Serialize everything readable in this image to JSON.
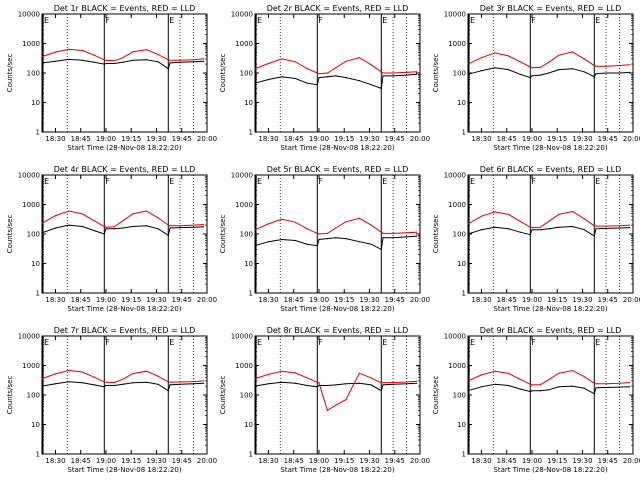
{
  "figure": {
    "background": "#ffffff",
    "colors": {
      "events": "#000000",
      "lld": "#e00000",
      "axes": "#000000"
    }
  },
  "chart_data": [
    {
      "type": "line",
      "title": "Det 1r BLACK = Events, RED = LLD",
      "ylabel": "Counts/sec",
      "xlabel": "Start Time (28-Nov-08 18:22:20)",
      "x_ticks": [
        "18:30",
        "18:45",
        "19:00",
        "19:15",
        "19:30",
        "19:45",
        "20:00"
      ],
      "y_ticks": [
        "1",
        "10",
        "100",
        "1000",
        "10000"
      ],
      "ylim": [
        1,
        10000
      ],
      "log_y": true,
      "markers": [
        {
          "label": "E",
          "x": "18:22"
        },
        {
          "label": "F",
          "x": "18:59"
        },
        {
          "label": "E",
          "x": "19:37"
        }
      ],
      "x": [
        "18:22",
        "18:30",
        "18:38",
        "18:46",
        "18:53",
        "18:59",
        "19:00",
        "19:05",
        "19:10",
        "19:16",
        "19:24",
        "19:31",
        "19:37",
        "19:38",
        "19:44",
        "19:52",
        "19:58"
      ],
      "series": [
        {
          "name": "BLACK = Events",
          "values": [
            220,
            250,
            290,
            270,
            230,
            200,
            210,
            210,
            230,
            270,
            280,
            240,
            140,
            220,
            230,
            240,
            250
          ]
        },
        {
          "name": "RED = LLD",
          "values": [
            360,
            510,
            640,
            580,
            400,
            280,
            270,
            260,
            330,
            520,
            620,
            420,
            280,
            270,
            270,
            280,
            300
          ]
        }
      ]
    },
    {
      "type": "line",
      "title": "Det 2r BLACK = Events, RED = LLD",
      "ylabel": "Counts/sec",
      "xlabel": "Start Time (28-Nov-08 18:22:20)",
      "x_ticks": [
        "18:30",
        "18:45",
        "19:00",
        "19:15",
        "19:30",
        "19:45",
        "20:00"
      ],
      "y_ticks": [
        "1",
        "10",
        "100",
        "1000",
        "10000"
      ],
      "ylim": [
        1,
        10000
      ],
      "log_y": true,
      "markers": [
        {
          "label": "E",
          "x": "18:22"
        },
        {
          "label": "F",
          "x": "18:59"
        },
        {
          "label": "E",
          "x": "19:37"
        }
      ],
      "x": [
        "18:22",
        "18:30",
        "18:38",
        "18:46",
        "18:53",
        "18:59",
        "19:00",
        "19:05",
        "19:10",
        "19:16",
        "19:24",
        "19:31",
        "19:37",
        "19:38",
        "19:44",
        "19:52",
        "19:58"
      ],
      "series": [
        {
          "name": "BLACK = Events",
          "values": [
            45,
            60,
            75,
            65,
            45,
            40,
            70,
            75,
            80,
            70,
            55,
            40,
            30,
            80,
            80,
            85,
            90
          ]
        },
        {
          "name": "RED = LLD",
          "values": [
            140,
            210,
            300,
            240,
            140,
            100,
            95,
            100,
            150,
            250,
            330,
            190,
            110,
            100,
            100,
            105,
            110
          ]
        }
      ]
    },
    {
      "type": "line",
      "title": "Det 3r BLACK = Events, RED = LLD",
      "ylabel": "Counts/sec",
      "xlabel": "Start Time (28-Nov-08 18:22:20)",
      "x_ticks": [
        "18:30",
        "18:45",
        "19:00",
        "19:15",
        "19:30",
        "19:45",
        "20:00"
      ],
      "y_ticks": [
        "1",
        "10",
        "100",
        "1000",
        "10000"
      ],
      "ylim": [
        1,
        10000
      ],
      "log_y": true,
      "markers": [
        {
          "label": "E",
          "x": "18:22"
        },
        {
          "label": "F",
          "x": "18:59"
        },
        {
          "label": "E",
          "x": "19:37"
        }
      ],
      "x": [
        "18:22",
        "18:30",
        "18:38",
        "18:46",
        "18:53",
        "18:59",
        "19:00",
        "19:05",
        "19:10",
        "19:16",
        "19:24",
        "19:31",
        "19:37",
        "19:38",
        "19:44",
        "19:52",
        "19:58"
      ],
      "series": [
        {
          "name": "BLACK = Events",
          "values": [
            90,
            120,
            150,
            130,
            90,
            70,
            80,
            85,
            100,
            130,
            140,
            110,
            75,
            95,
            100,
            100,
            105
          ]
        },
        {
          "name": "RED = LLD",
          "values": [
            200,
            330,
            480,
            380,
            240,
            160,
            150,
            155,
            230,
            400,
            520,
            300,
            180,
            170,
            170,
            180,
            190
          ]
        }
      ]
    },
    {
      "type": "line",
      "title": "Det 4r BLACK = Events, RED = LLD",
      "ylabel": "Counts/sec",
      "xlabel": "Start Time (28-Nov-08 18:22:20)",
      "x_ticks": [
        "18:30",
        "18:45",
        "19:00",
        "19:15",
        "19:30",
        "19:45",
        "20:00"
      ],
      "y_ticks": [
        "1",
        "10",
        "100",
        "1000",
        "10000"
      ],
      "ylim": [
        1,
        10000
      ],
      "log_y": true,
      "markers": [
        {
          "label": "E",
          "x": "18:22"
        },
        {
          "label": "F",
          "x": "18:59"
        },
        {
          "label": "E",
          "x": "19:37"
        }
      ],
      "x": [
        "18:22",
        "18:30",
        "18:38",
        "18:46",
        "18:53",
        "18:59",
        "19:00",
        "19:05",
        "19:10",
        "19:16",
        "19:24",
        "19:31",
        "19:37",
        "19:38",
        "19:44",
        "19:52",
        "19:58"
      ],
      "series": [
        {
          "name": "BLACK = Events",
          "values": [
            110,
            160,
            200,
            180,
            130,
            100,
            150,
            150,
            160,
            180,
            190,
            150,
            90,
            160,
            165,
            170,
            175
          ]
        },
        {
          "name": "RED = LLD",
          "values": [
            230,
            420,
            600,
            480,
            280,
            180,
            170,
            175,
            280,
            480,
            600,
            350,
            200,
            190,
            190,
            200,
            210
          ]
        }
      ]
    },
    {
      "type": "line",
      "title": "Det 5r BLACK = Events, RED = LLD",
      "ylabel": "Counts/sec",
      "xlabel": "Start Time (28-Nov-08 18:22:20)",
      "x_ticks": [
        "18:30",
        "18:45",
        "19:00",
        "19:15",
        "19:30",
        "19:45",
        "20:00"
      ],
      "y_ticks": [
        "1",
        "10",
        "100",
        "1000",
        "10000"
      ],
      "ylim": [
        1,
        10000
      ],
      "log_y": true,
      "markers": [
        {
          "label": "E",
          "x": "18:22"
        },
        {
          "label": "F",
          "x": "18:59"
        },
        {
          "label": "E",
          "x": "19:37"
        }
      ],
      "x": [
        "18:22",
        "18:30",
        "18:38",
        "18:46",
        "18:53",
        "18:59",
        "19:00",
        "19:05",
        "19:10",
        "19:16",
        "19:24",
        "19:31",
        "19:37",
        "19:38",
        "19:44",
        "19:52",
        "19:58"
      ],
      "series": [
        {
          "name": "BLACK = Events",
          "values": [
            40,
            55,
            65,
            60,
            45,
            40,
            65,
            70,
            75,
            70,
            55,
            45,
            30,
            75,
            75,
            80,
            85
          ]
        },
        {
          "name": "RED = LLD",
          "values": [
            140,
            220,
            320,
            250,
            150,
            105,
            100,
            105,
            160,
            260,
            340,
            200,
            115,
            105,
            105,
            110,
            115
          ]
        }
      ]
    },
    {
      "type": "line",
      "title": "Det 6r BLACK = Events, RED = LLD",
      "ylabel": "Counts/sec",
      "xlabel": "Start Time (28-Nov-08 18:22:20)",
      "x_ticks": [
        "18:30",
        "18:45",
        "19:00",
        "19:15",
        "19:30",
        "19:45",
        "20:00"
      ],
      "y_ticks": [
        "1",
        "10",
        "100",
        "1000",
        "10000"
      ],
      "ylim": [
        1,
        10000
      ],
      "log_y": true,
      "markers": [
        {
          "label": "E",
          "x": "18:22"
        },
        {
          "label": "F",
          "x": "18:59"
        },
        {
          "label": "E",
          "x": "19:37"
        }
      ],
      "x": [
        "18:22",
        "18:30",
        "18:38",
        "18:46",
        "18:53",
        "18:59",
        "19:00",
        "19:05",
        "19:10",
        "19:16",
        "19:24",
        "19:31",
        "19:37",
        "19:38",
        "19:44",
        "19:52",
        "19:58"
      ],
      "series": [
        {
          "name": "BLACK = Events",
          "values": [
            100,
            140,
            170,
            150,
            115,
            95,
            140,
            140,
            150,
            170,
            180,
            140,
            85,
            150,
            155,
            160,
            165
          ]
        },
        {
          "name": "RED = LLD",
          "values": [
            220,
            400,
            560,
            460,
            270,
            170,
            165,
            170,
            270,
            460,
            580,
            330,
            190,
            185,
            185,
            190,
            200
          ]
        }
      ]
    },
    {
      "type": "line",
      "title": "Det 7r BLACK = Events, RED = LLD",
      "ylabel": "Counts/sec",
      "xlabel": "Start Time (28-Nov-08 18:22:20)",
      "x_ticks": [
        "18:30",
        "18:45",
        "19:00",
        "19:15",
        "19:30",
        "19:45",
        "20:00"
      ],
      "y_ticks": [
        "1",
        "10",
        "100",
        "1000",
        "10000"
      ],
      "ylim": [
        1,
        10000
      ],
      "log_y": true,
      "markers": [
        {
          "label": "E",
          "x": "18:22"
        },
        {
          "label": "F",
          "x": "18:59"
        },
        {
          "label": "E",
          "x": "19:37"
        }
      ],
      "x": [
        "18:22",
        "18:30",
        "18:38",
        "18:46",
        "18:53",
        "18:59",
        "19:00",
        "19:05",
        "19:10",
        "19:16",
        "19:24",
        "19:31",
        "19:37",
        "19:38",
        "19:44",
        "19:52",
        "19:58"
      ],
      "series": [
        {
          "name": "BLACK = Events",
          "values": [
            200,
            240,
            280,
            260,
            220,
            190,
            210,
            210,
            230,
            260,
            270,
            230,
            140,
            220,
            230,
            240,
            250
          ]
        },
        {
          "name": "RED = LLD",
          "values": [
            360,
            520,
            680,
            600,
            400,
            280,
            270,
            265,
            340,
            530,
            640,
            430,
            280,
            270,
            275,
            285,
            300
          ]
        }
      ]
    },
    {
      "type": "line",
      "title": "Det 8r BLACK = Events, RED = LLD",
      "ylabel": "Counts/sec",
      "xlabel": "Start Time (28-Nov-08 18:22:20)",
      "x_ticks": [
        "18:30",
        "18:45",
        "19:00",
        "19:15",
        "19:30",
        "19:45",
        "20:00"
      ],
      "y_ticks": [
        "1",
        "10",
        "100",
        "1000",
        "10000"
      ],
      "ylim": [
        1,
        10000
      ],
      "log_y": true,
      "markers": [
        {
          "label": "E",
          "x": "18:22"
        },
        {
          "label": "F",
          "x": "18:59"
        },
        {
          "label": "E",
          "x": "19:37"
        }
      ],
      "x": [
        "18:22",
        "18:30",
        "18:38",
        "18:46",
        "18:53",
        "18:59",
        "19:00",
        "19:05",
        "19:10",
        "19:16",
        "19:24",
        "19:31",
        "19:37",
        "19:38",
        "19:44",
        "19:52",
        "19:58"
      ],
      "series": [
        {
          "name": "BLACK = Events",
          "values": [
            200,
            240,
            270,
            250,
            210,
            190,
            210,
            210,
            220,
            240,
            250,
            220,
            140,
            220,
            230,
            240,
            250
          ]
        },
        {
          "name": "RED = LLD",
          "values": [
            360,
            500,
            640,
            560,
            380,
            270,
            260,
            30,
            45,
            70,
            550,
            380,
            260,
            260,
            265,
            275,
            290
          ]
        }
      ]
    },
    {
      "type": "line",
      "title": "Det 9r BLACK = Events, RED = LLD",
      "ylabel": "Counts/sec",
      "xlabel": "Start Time (28-Nov-08 18:22:20)",
      "x_ticks": [
        "18:30",
        "18:45",
        "19:00",
        "19:15",
        "19:30",
        "19:45",
        "20:00"
      ],
      "y_ticks": [
        "1",
        "10",
        "100",
        "1000",
        "10000"
      ],
      "ylim": [
        1,
        10000
      ],
      "log_y": true,
      "markers": [
        {
          "label": "E",
          "x": "18:22"
        },
        {
          "label": "F",
          "x": "18:59"
        },
        {
          "label": "E",
          "x": "19:37"
        }
      ],
      "x": [
        "18:22",
        "18:30",
        "18:38",
        "18:46",
        "18:53",
        "18:59",
        "19:00",
        "19:05",
        "19:10",
        "19:16",
        "19:24",
        "19:31",
        "19:37",
        "19:38",
        "19:44",
        "19:52",
        "19:58"
      ],
      "series": [
        {
          "name": "BLACK = Events",
          "values": [
            140,
            190,
            230,
            210,
            160,
            130,
            140,
            140,
            150,
            190,
            200,
            170,
            110,
            175,
            180,
            185,
            190
          ]
        },
        {
          "name": "RED = LLD",
          "values": [
            300,
            480,
            640,
            540,
            340,
            230,
            220,
            225,
            330,
            550,
            670,
            420,
            250,
            240,
            240,
            250,
            265
          ]
        }
      ]
    }
  ]
}
